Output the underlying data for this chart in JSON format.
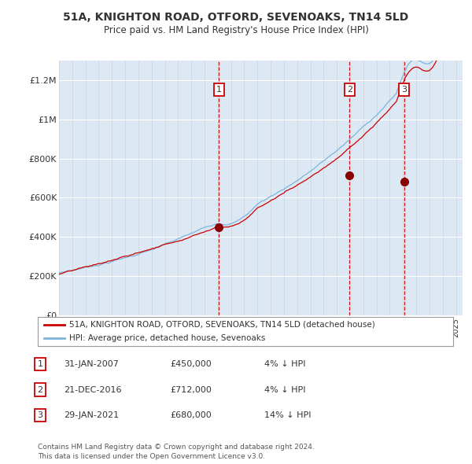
{
  "title": "51A, KNIGHTON ROAD, OTFORD, SEVENOAKS, TN14 5LD",
  "subtitle": "Price paid vs. HM Land Registry's House Price Index (HPI)",
  "background_color": "#ffffff",
  "plot_bg_color": "#dce9f5",
  "hpi_line_color": "#7eb4d8",
  "price_line_color": "#cc0000",
  "dashed_line_color": "#cc0000",
  "ylim": [
    0,
    1300000
  ],
  "yticks": [
    0,
    200000,
    400000,
    600000,
    800000,
    1000000,
    1200000
  ],
  "ytick_labels": [
    "£0",
    "£200K",
    "£400K",
    "£600K",
    "£800K",
    "£1M",
    "£1.2M"
  ],
  "x_start_year": 1995,
  "x_end_year": 2025,
  "sale_year_floats": [
    2007.083,
    2016.96,
    2021.083
  ],
  "sale_prices": [
    450000,
    712000,
    680000
  ],
  "sale_labels": [
    "1",
    "2",
    "3"
  ],
  "legend_label_red": "51A, KNIGHTON ROAD, OTFORD, SEVENOAKS, TN14 5LD (detached house)",
  "legend_label_blue": "HPI: Average price, detached house, Sevenoaks",
  "table_rows": [
    [
      "1",
      "31-JAN-2007",
      "£450,000",
      "4% ↓ HPI"
    ],
    [
      "2",
      "21-DEC-2016",
      "£712,000",
      "4% ↓ HPI"
    ],
    [
      "3",
      "29-JAN-2021",
      "£680,000",
      "14% ↓ HPI"
    ]
  ],
  "footer": "Contains HM Land Registry data © Crown copyright and database right 2024.\nThis data is licensed under the Open Government Licence v3.0.",
  "title_fontsize": 10,
  "subtitle_fontsize": 8.5
}
